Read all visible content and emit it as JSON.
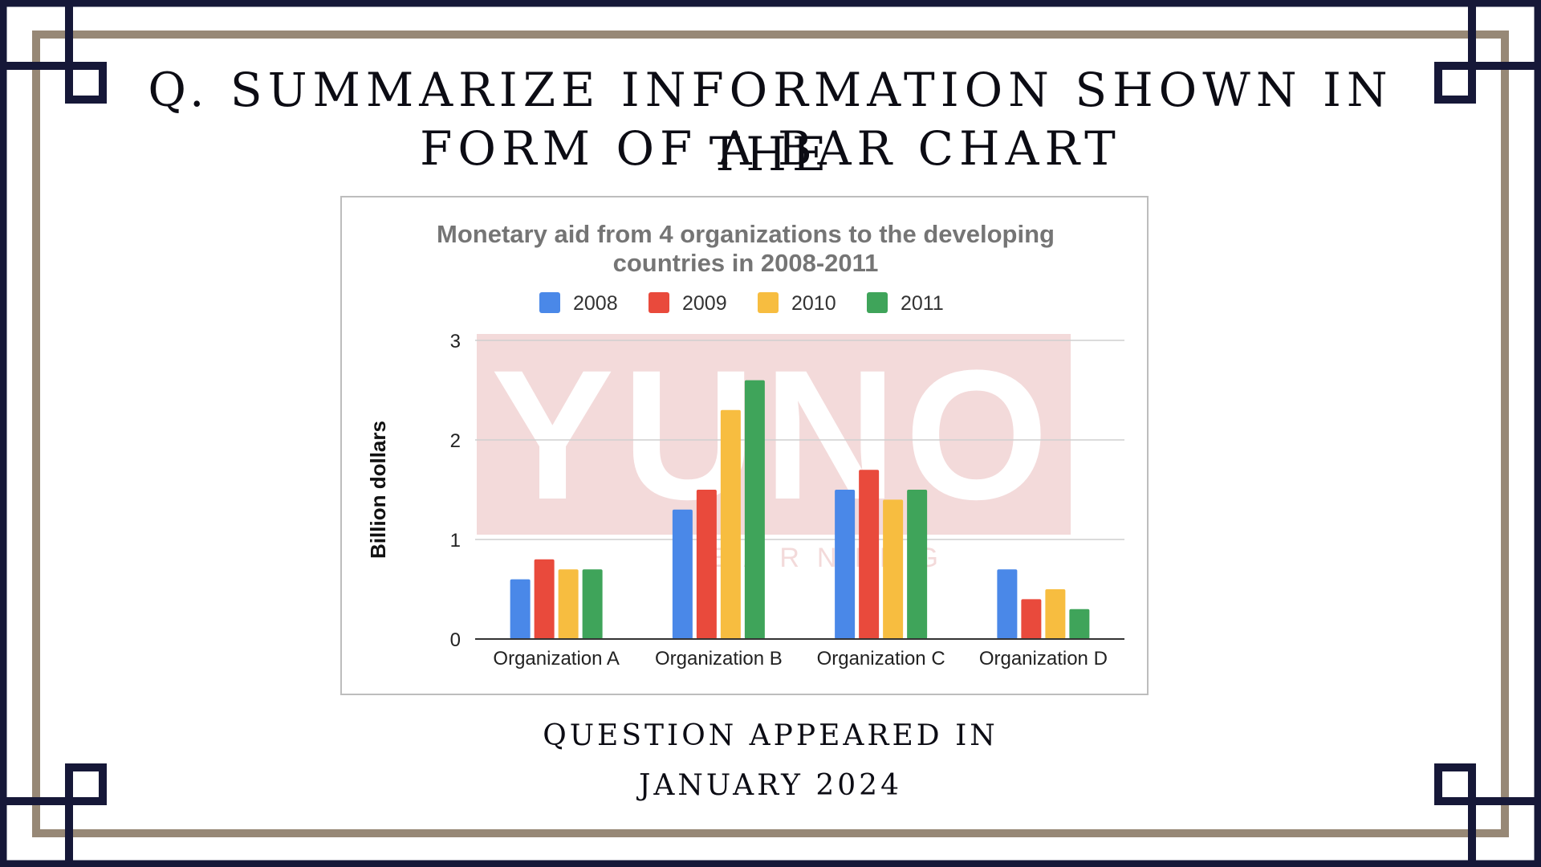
{
  "page": {
    "headline_line1": "Q. Summarize information shown in the",
    "headline_line2": "form of a bar chart",
    "footer_line1": "Question appeared in",
    "footer_line2": "January 2024"
  },
  "colors": {
    "frame_dark": "#161838",
    "frame_taupe": "#978876",
    "watermark": "#f3dada"
  },
  "watermark": {
    "main": "YUNO",
    "sub": "LEARNING"
  },
  "chart_data": {
    "type": "bar",
    "title_line1": "Monetary aid from 4 organizations to the developing",
    "title_line2": "countries in 2008-2011",
    "xlabel": "",
    "ylabel": "Billion dollars",
    "ylim": [
      0,
      3
    ],
    "yticks": [
      0,
      1,
      2,
      3
    ],
    "grid": true,
    "legend_position": "top",
    "categories": [
      "Organization A",
      "Organization B",
      "Organization C",
      "Organization D"
    ],
    "series": [
      {
        "name": "2008",
        "color": "#4a88e8",
        "values": [
          0.6,
          1.3,
          1.5,
          0.7
        ]
      },
      {
        "name": "2009",
        "color": "#e94a3c",
        "values": [
          0.8,
          1.5,
          1.7,
          0.4
        ]
      },
      {
        "name": "2010",
        "color": "#f7bd40",
        "values": [
          0.7,
          2.3,
          1.4,
          0.5
        ]
      },
      {
        "name": "2011",
        "color": "#3fa45a",
        "values": [
          0.7,
          2.6,
          1.5,
          0.3
        ]
      }
    ]
  }
}
